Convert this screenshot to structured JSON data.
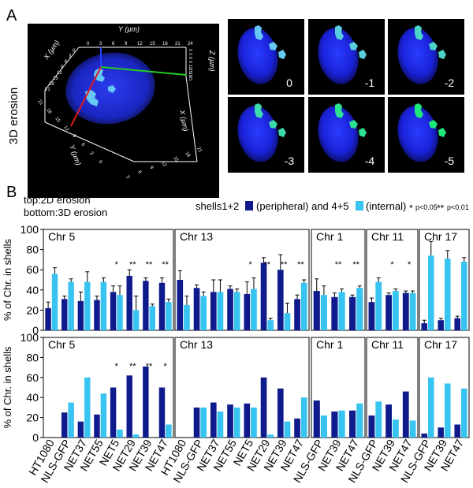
{
  "panel_a": {
    "letter": "A",
    "side_label": "3D erosion",
    "axis_labels": {
      "y_top": "Y (µm)",
      "x_left": "X (µm)",
      "z": "Z (µm)",
      "y_bottom": "Y (µm)",
      "x_bottom": "X (µm)"
    },
    "ticks_top": [
      "0",
      "3",
      "6",
      "9",
      "12",
      "15",
      "18",
      "21",
      "24"
    ],
    "ticks_x_left": [
      "0",
      "3",
      "6",
      "9",
      "12",
      "15",
      "18",
      "21"
    ],
    "ticks_y_bottom": [
      "21",
      "18",
      "15",
      "12",
      "9",
      "6",
      "3",
      "0"
    ],
    "ticks_x_bottom": [
      "3",
      "6",
      "9",
      "12",
      "15",
      "18",
      "21"
    ],
    "ticks_z": [
      "0",
      "3",
      "6",
      "9",
      "12",
      "15",
      "18",
      "21"
    ],
    "erosion_steps": [
      "0",
      "-1",
      "-2",
      "-3",
      "-4",
      "-5"
    ]
  },
  "panel_b": {
    "letter": "B",
    "caption_top": "top:2D erosion",
    "caption_bottom": "bottom:3D erosion",
    "legend": {
      "shells_prefix": "shells1+2",
      "peripheral": "(peripheral) and 4+5",
      "internal": "(internal)",
      "sig1_marker": "*",
      "sig1": "p<0.05",
      "sig2_marker": "**",
      "sig2": "p<0.01"
    },
    "ylabel": "% of Chr. in shells",
    "yticks": [
      "0",
      "20",
      "40",
      "60",
      "80",
      "100"
    ],
    "colors": {
      "peripheral": "#0f1b8c",
      "internal": "#38c4f0"
    }
  },
  "chart_data": [
    {
      "type": "bar",
      "title": "top:2D erosion",
      "ylabel": "% of Chr. in shells",
      "ylim": [
        0,
        100
      ],
      "groups": [
        {
          "name": "Chr 5",
          "categories": [
            "HT1080",
            "NLS-GFP",
            "NET37",
            "NET55",
            "NET5",
            "NET29",
            "NET39",
            "NET47"
          ],
          "series": [
            {
              "name": "shells1+2 (peripheral)",
              "values": [
                22,
                31,
                29,
                30,
                38,
                54,
                49,
                47
              ]
            },
            {
              "name": "4+5 (internal)",
              "values": [
                56,
                48,
                48,
                48,
                35,
                20,
                24,
                28
              ]
            }
          ],
          "errors": [
            [
              6,
              3,
              9,
              4,
              6,
              6,
              3,
              5
            ],
            [
              6,
              3,
              10,
              4,
              9,
              14,
              2,
              3
            ]
          ],
          "significance": [
            "",
            "",
            "",
            "",
            "*",
            "**",
            "**",
            "**"
          ]
        },
        {
          "name": "Chr 13",
          "categories": [
            "HT1080",
            "NLS-GFP",
            "NET37",
            "NET55",
            "NET5",
            "NET29",
            "NET39",
            "NET47"
          ],
          "series": [
            {
              "name": "shells1+2 (peripheral)",
              "values": [
                50,
                42,
                38,
                41,
                36,
                67,
                60,
                31
              ]
            },
            {
              "name": "4+5 (internal)",
              "values": [
                25,
                34,
                38,
                38,
                41,
                10,
                17,
                47
              ]
            }
          ],
          "errors": [
            [
              9,
              3,
              12,
              3,
              12,
              5,
              15,
              4
            ],
            [
              9,
              4,
              12,
              3,
              11,
              2,
              10,
              3
            ]
          ],
          "significance": [
            "",
            "",
            "",
            "",
            "*",
            "**",
            "**",
            "**"
          ]
        },
        {
          "name": "Chr 1",
          "categories": [
            "NLS-GFP",
            "NET39",
            "NET47"
          ],
          "series": [
            {
              "name": "shells1+2 (peripheral)",
              "values": [
                39,
                33,
                33
              ]
            },
            {
              "name": "4+5 (internal)",
              "values": [
                35,
                38,
                42
              ]
            }
          ],
          "errors": [
            [
              12,
              4,
              2
            ],
            [
              9,
              3,
              2
            ]
          ],
          "significance": [
            "",
            "**",
            "**"
          ]
        },
        {
          "name": "Chr 11",
          "categories": [
            "NLS-GFP",
            "NET39",
            "NET47"
          ],
          "series": [
            {
              "name": "shells1+2 (peripheral)",
              "values": [
                28,
                35,
                37
              ]
            },
            {
              "name": "4+5 (internal)",
              "values": [
                48,
                39,
                37
              ]
            }
          ],
          "errors": [
            [
              4,
              2,
              2
            ],
            [
              4,
              2,
              2
            ]
          ],
          "significance": [
            "",
            "*",
            "*"
          ]
        },
        {
          "name": "Chr 17",
          "categories": [
            "NLS-GFP",
            "NET39",
            "NET47"
          ],
          "series": [
            {
              "name": "shells1+2 (peripheral)",
              "values": [
                7,
                10,
                12
              ]
            },
            {
              "name": "4+5 (internal)",
              "values": [
                74,
                71,
                68
              ]
            }
          ],
          "errors": [
            [
              3,
              2,
              2
            ],
            [
              14,
              8,
              4
            ]
          ],
          "significance": [
            "",
            "",
            ""
          ]
        }
      ]
    },
    {
      "type": "bar",
      "title": "bottom:3D erosion",
      "ylabel": "% of Chr. in shells",
      "ylim": [
        0,
        100
      ],
      "groups": [
        {
          "name": "Chr 5",
          "categories": [
            "HT1080",
            "NLS-GFP",
            "NET37",
            "NET55",
            "NET5",
            "NET29",
            "NET39",
            "NET47"
          ],
          "series": [
            {
              "name": "shells1+2 (peripheral)",
              "values": [
                0,
                25,
                16,
                23,
                50,
                62,
                71,
                50
              ]
            },
            {
              "name": "4+5 (internal)",
              "values": [
                0,
                35,
                60,
                44,
                8,
                3,
                0,
                13
              ]
            }
          ],
          "significance": [
            "",
            "",
            "",
            "",
            "*",
            "**",
            "**",
            "*"
          ]
        },
        {
          "name": "Chr 13",
          "categories": [
            "HT1080",
            "NLS-GFP",
            "NET37",
            "NET55",
            "NET5",
            "NET29",
            "NET39",
            "NET47"
          ],
          "series": [
            {
              "name": "shells1+2 (peripheral)",
              "values": [
                0,
                30,
                35,
                33,
                34,
                60,
                49,
                19
              ]
            },
            {
              "name": "4+5 (internal)",
              "values": [
                0,
                30,
                26,
                30,
                30,
                3,
                16,
                40
              ]
            }
          ],
          "significance": [
            "",
            "",
            "",
            "",
            "",
            "",
            "",
            ""
          ]
        },
        {
          "name": "Chr 1",
          "categories": [
            "NLS-GFP",
            "NET39",
            "NET47"
          ],
          "series": [
            {
              "name": "shells1+2 (peripheral)",
              "values": [
                37,
                26,
                27
              ]
            },
            {
              "name": "4+5 (internal)",
              "values": [
                22,
                27,
                34
              ]
            }
          ],
          "significance": [
            "",
            "",
            ""
          ]
        },
        {
          "name": "Chr 11",
          "categories": [
            "NLS-GFP",
            "NET39",
            "NET47"
          ],
          "series": [
            {
              "name": "shells1+2 (peripheral)",
              "values": [
                22,
                33,
                46
              ]
            },
            {
              "name": "4+5 (internal)",
              "values": [
                36,
                18,
                17
              ]
            }
          ],
          "significance": [
            "",
            "",
            ""
          ]
        },
        {
          "name": "Chr 17",
          "categories": [
            "NLS-GFP",
            "NET39",
            "NET47"
          ],
          "series": [
            {
              "name": "shells1+2 (peripheral)",
              "values": [
                4,
                10,
                13
              ]
            },
            {
              "name": "4+5 (internal)",
              "values": [
                60,
                54,
                49
              ]
            }
          ],
          "significance": [
            "",
            "",
            ""
          ]
        }
      ]
    }
  ]
}
